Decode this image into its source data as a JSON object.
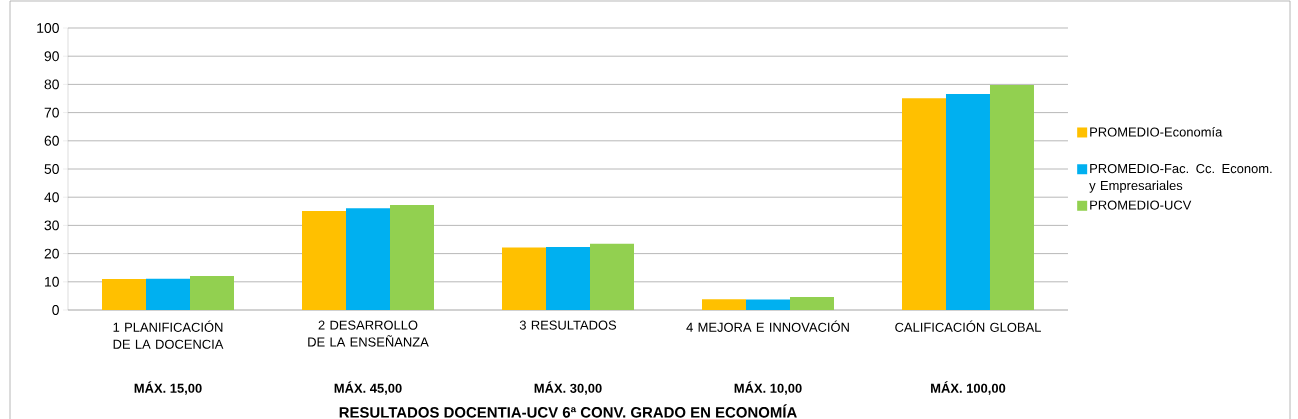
{
  "chart_data": {
    "type": "bar",
    "title": "RESULTADOS DOCENTIA-UCV 6ª CONV. GRADO EN ECONOMÍA",
    "categories": [
      "1 PLANIFICACIÓN DE LA DOCENCIA",
      "2 DESARROLLO DE LA ENSEÑANZA",
      "3 RESULTADOS",
      "4 MEJORA E INNOVACIÓN",
      "CALIFICACIÓN GLOBAL"
    ],
    "series": [
      {
        "name": "PROMEDIO-Economía",
        "color": "#ffc000",
        "values": [
          11.0,
          35.1,
          22.2,
          3.8,
          75.1
        ]
      },
      {
        "name": "PROMEDIO-Fac. Cc. Econom. y Empresariales",
        "color": "#00b0f0",
        "values": [
          11.1,
          36.1,
          22.3,
          3.7,
          76.6
        ]
      },
      {
        "name": "PROMEDIO-UCV",
        "color": "#92d050",
        "values": [
          12.1,
          37.2,
          23.5,
          4.6,
          79.8
        ]
      }
    ],
    "ylim": [
      0,
      100
    ],
    "yticks": [
      0,
      10,
      20,
      30,
      40,
      50,
      60,
      70,
      80,
      90,
      100
    ],
    "grid": "y",
    "legend": "right",
    "annotations": [
      "MÁX. 15,00",
      "MÁX. 45,00",
      "MÁX. 30,00",
      "MÁX. 10,00",
      "MÁX. 100,00"
    ]
  }
}
